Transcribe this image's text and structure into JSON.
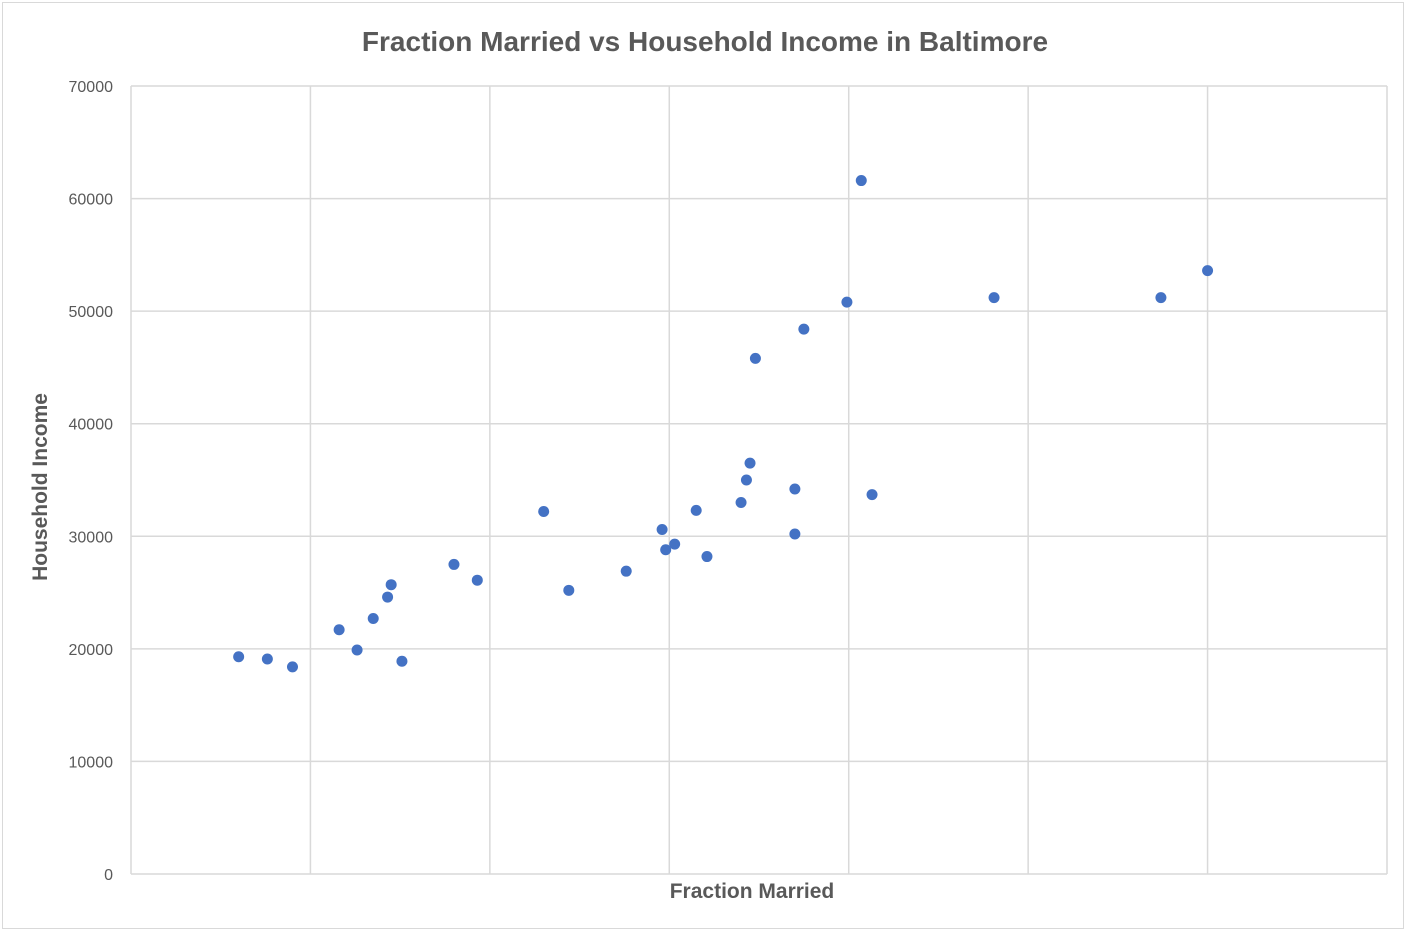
{
  "chart_data": {
    "type": "scatter",
    "title": "Fraction Married vs Household Income in Baltimore",
    "xlabel": "Fraction Married",
    "ylabel": "Household Income",
    "xlim": [
      0,
      7
    ],
    "ylim": [
      0,
      70000
    ],
    "y_ticks": [
      0,
      10000,
      20000,
      30000,
      40000,
      50000,
      60000,
      70000
    ],
    "y_tick_labels": [
      "0",
      "10000",
      "20000",
      "30000",
      "40000",
      "50000",
      "60000",
      "70000"
    ],
    "x_gridlines": [
      1,
      2,
      3,
      4,
      5,
      6,
      7
    ],
    "x_tick_labels_visible": false,
    "grid": true,
    "legend": "none",
    "marker_color": "#4472c4",
    "gridline_color": "#d9d9d9",
    "points": [
      {
        "x": 0.6,
        "y": 19300
      },
      {
        "x": 0.76,
        "y": 19100
      },
      {
        "x": 0.9,
        "y": 18400
      },
      {
        "x": 1.16,
        "y": 21700
      },
      {
        "x": 1.26,
        "y": 19900
      },
      {
        "x": 1.35,
        "y": 22700
      },
      {
        "x": 1.43,
        "y": 24600
      },
      {
        "x": 1.45,
        "y": 25700
      },
      {
        "x": 1.51,
        "y": 18900
      },
      {
        "x": 1.8,
        "y": 27500
      },
      {
        "x": 1.93,
        "y": 26100
      },
      {
        "x": 2.3,
        "y": 32200
      },
      {
        "x": 2.44,
        "y": 25200
      },
      {
        "x": 2.76,
        "y": 26900
      },
      {
        "x": 2.96,
        "y": 30600
      },
      {
        "x": 2.98,
        "y": 28800
      },
      {
        "x": 3.03,
        "y": 29300
      },
      {
        "x": 3.15,
        "y": 32300
      },
      {
        "x": 3.21,
        "y": 28200
      },
      {
        "x": 3.4,
        "y": 33000
      },
      {
        "x": 3.43,
        "y": 35000
      },
      {
        "x": 3.45,
        "y": 36500
      },
      {
        "x": 3.48,
        "y": 45800
      },
      {
        "x": 3.7,
        "y": 34200
      },
      {
        "x": 3.7,
        "y": 30200
      },
      {
        "x": 3.75,
        "y": 48400
      },
      {
        "x": 3.99,
        "y": 50800
      },
      {
        "x": 4.07,
        "y": 61600
      },
      {
        "x": 4.13,
        "y": 33700
      },
      {
        "x": 4.81,
        "y": 51200
      },
      {
        "x": 5.74,
        "y": 51200
      },
      {
        "x": 6.0,
        "y": 53600
      }
    ]
  }
}
